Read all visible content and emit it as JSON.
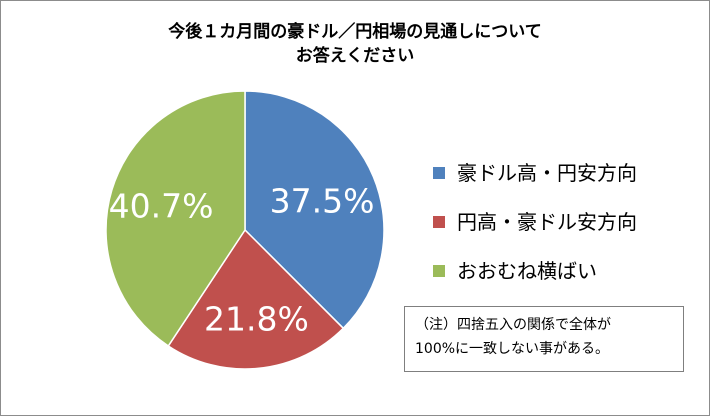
{
  "chart_data": {
    "type": "pie",
    "title": [
      "今後１カ月間の豪ドル／円相場の見通しについて",
      "お答えください"
    ],
    "slices": [
      {
        "name": "豪ドル高・円安方向",
        "value": 37.5,
        "label": "37.5%",
        "color": "#4f81bd"
      },
      {
        "name": "円高・豪ドル安方向",
        "value": 21.8,
        "label": "21.8%",
        "color": "#c0504d"
      },
      {
        "name": "おおむね横ばい",
        "value": 40.7,
        "label": "40.7%",
        "color": "#9bbb59"
      }
    ],
    "legend": {
      "placement": "right"
    },
    "start_angle": "12 o'clock",
    "direction": "clockwise"
  },
  "note": [
    "（注）四捨五入の関係で全体が",
    "100%に一致しない事がある。"
  ]
}
